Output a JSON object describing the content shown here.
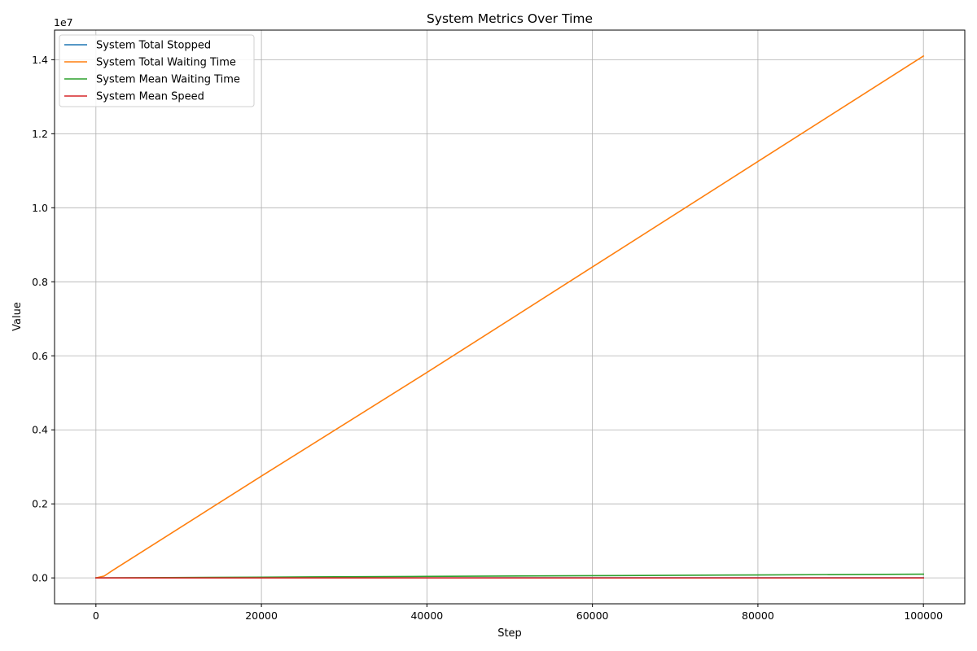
{
  "chart_data": {
    "type": "line",
    "title": "System Metrics Over Time",
    "xlabel": "Step",
    "ylabel": "Value",
    "y_offset_label": "1e7",
    "xlim": [
      -5000,
      105000
    ],
    "ylim": [
      -0.07,
      1.48
    ],
    "y_scale_note": "y tick values are in units of 1e7",
    "x_ticks": [
      0,
      20000,
      40000,
      60000,
      80000,
      100000
    ],
    "x_tick_labels": [
      "0",
      "20000",
      "40000",
      "60000",
      "80000",
      "100000"
    ],
    "y_ticks": [
      0.0,
      0.2,
      0.4,
      0.6,
      0.8,
      1.0,
      1.2,
      1.4
    ],
    "y_tick_labels": [
      "0.0",
      "0.2",
      "0.4",
      "0.6",
      "0.8",
      "1.0",
      "1.2",
      "1.4"
    ],
    "grid": true,
    "legend_position": "top-left",
    "series": [
      {
        "name": "System Total Stopped",
        "color": "#1f77b4",
        "x": [
          0,
          20000,
          40000,
          60000,
          80000,
          100000
        ],
        "y": [
          0.0,
          5e-05,
          0.0001,
          0.00015,
          0.0002,
          0.00025
        ]
      },
      {
        "name": "System Total Waiting Time",
        "color": "#ff7f0e",
        "x": [
          0,
          1000,
          2000,
          20000,
          40000,
          60000,
          80000,
          100000
        ],
        "y": [
          0.0,
          0.005,
          0.02,
          0.275,
          0.555,
          0.84,
          1.125,
          1.41
        ]
      },
      {
        "name": "System Mean Waiting Time",
        "color": "#2ca02c",
        "x": [
          0,
          20000,
          40000,
          60000,
          80000,
          100000
        ],
        "y": [
          0.0,
          0.002,
          0.004,
          0.006,
          0.008,
          0.01
        ]
      },
      {
        "name": "System Mean Speed",
        "color": "#d62728",
        "x": [
          0,
          20000,
          40000,
          60000,
          80000,
          100000
        ],
        "y": [
          0.0,
          0.0,
          0.0,
          0.0,
          0.0,
          0.0
        ]
      }
    ]
  }
}
